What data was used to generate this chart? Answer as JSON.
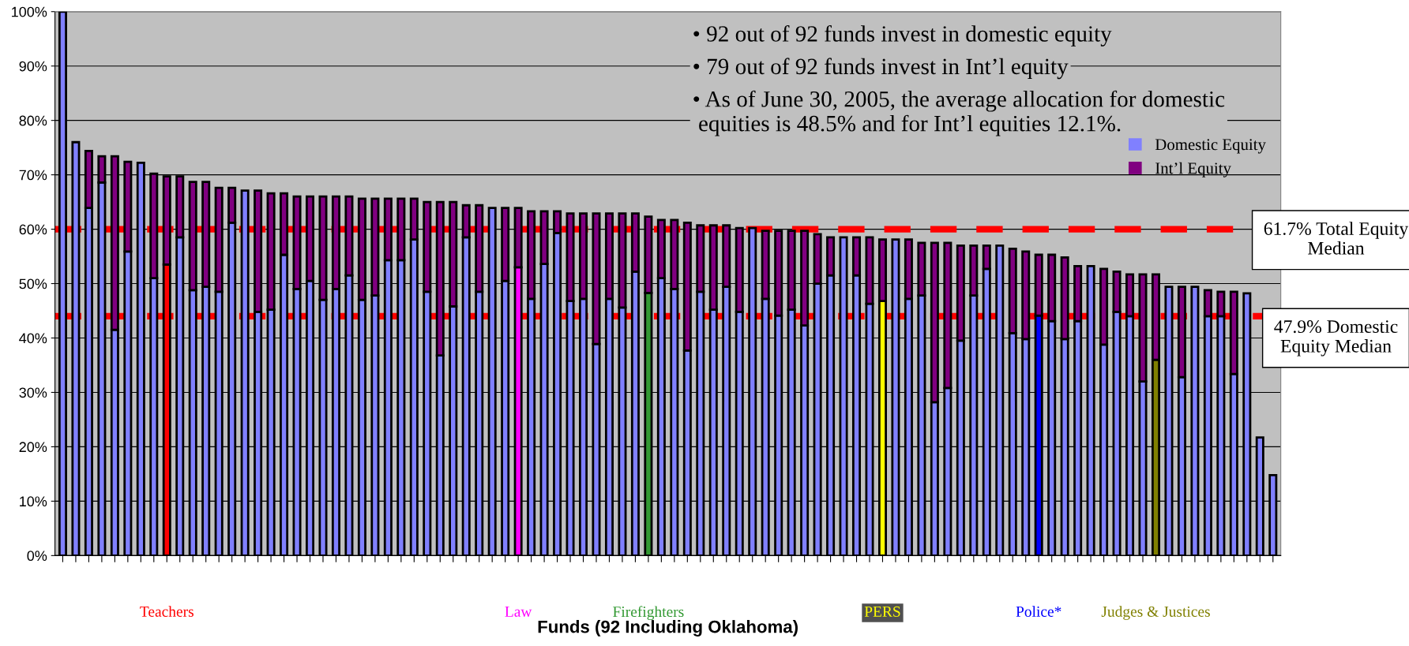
{
  "chart_data": {
    "type": "bar",
    "stacked": true,
    "xlabel": "Funds (92 Including Oklahoma)",
    "categories": [
      null,
      null,
      null,
      null,
      null,
      null,
      null,
      null,
      "Teachers",
      null,
      null,
      null,
      null,
      null,
      null,
      null,
      null,
      null,
      null,
      null,
      null,
      null,
      null,
      null,
      null,
      null,
      null,
      null,
      null,
      null,
      null,
      null,
      null,
      null,
      null,
      "Law",
      null,
      null,
      null,
      null,
      null,
      null,
      null,
      null,
      null,
      "Firefighters",
      null,
      null,
      null,
      null,
      null,
      null,
      null,
      null,
      null,
      null,
      null,
      null,
      null,
      null,
      null,
      null,
      null,
      "PERS",
      null,
      null,
      null,
      null,
      null,
      null,
      null,
      null,
      null,
      null,
      null,
      "Police*",
      null,
      null,
      null,
      null,
      null,
      null,
      null,
      null,
      "Judges & Justices",
      null,
      null,
      null,
      null,
      null,
      null,
      null,
      null,
      null
    ],
    "series": [
      {
        "name": "Domestic Equity",
        "color": "#8080ff",
        "colors": [
          "#8080ff",
          "#8080ff",
          "#8080ff",
          "#8080ff",
          "#8080ff",
          "#8080ff",
          "#8080ff",
          "#8080ff",
          "#ff0000",
          "#8080ff",
          "#8080ff",
          "#8080ff",
          "#8080ff",
          "#8080ff",
          "#8080ff",
          "#8080ff",
          "#8080ff",
          "#8080ff",
          "#8080ff",
          "#8080ff",
          "#8080ff",
          "#8080ff",
          "#8080ff",
          "#8080ff",
          "#8080ff",
          "#8080ff",
          "#8080ff",
          "#8080ff",
          "#8080ff",
          "#8080ff",
          "#8080ff",
          "#8080ff",
          "#8080ff",
          "#8080ff",
          "#8080ff",
          "#ff00ff",
          "#8080ff",
          "#8080ff",
          "#8080ff",
          "#8080ff",
          "#8080ff",
          "#8080ff",
          "#8080ff",
          "#8080ff",
          "#8080ff",
          "#339933",
          "#8080ff",
          "#8080ff",
          "#8080ff",
          "#8080ff",
          "#8080ff",
          "#8080ff",
          "#8080ff",
          "#8080ff",
          "#8080ff",
          "#8080ff",
          "#8080ff",
          "#8080ff",
          "#8080ff",
          "#8080ff",
          "#8080ff",
          "#8080ff",
          "#8080ff",
          "#ffff00",
          "#8080ff",
          "#8080ff",
          "#8080ff",
          "#8080ff",
          "#8080ff",
          "#8080ff",
          "#8080ff",
          "#8080ff",
          "#8080ff",
          "#8080ff",
          "#8080ff",
          "#0000ff",
          "#8080ff",
          "#8080ff",
          "#8080ff",
          "#8080ff",
          "#8080ff",
          "#8080ff",
          "#8080ff",
          "#8080ff",
          "#808000",
          "#8080ff",
          "#8080ff",
          "#8080ff",
          "#8080ff",
          "#8080ff",
          "#8080ff",
          "#8080ff",
          "#8080ff",
          "#8080ff"
        ],
        "values": [
          100,
          76,
          63.9,
          68.6,
          41.5,
          55.9,
          72.2,
          51,
          53.5,
          58.5,
          48.8,
          49.4,
          48.5,
          61.2,
          67.1,
          44.8,
          45.2,
          55.3,
          49,
          50.5,
          47,
          49,
          51.5,
          47,
          47.8,
          54.3,
          54.3,
          58.1,
          48.5,
          36.8,
          45.8,
          58.5,
          48.5,
          63.9,
          50.5,
          53,
          47.2,
          53.6,
          59.3,
          46.8,
          47.2,
          38.9,
          47.2,
          45.6,
          52.2,
          48.3,
          51,
          49,
          37.7,
          48.5,
          45.2,
          49.4,
          44.8,
          60.2,
          47.2,
          44.1,
          45.2,
          42.3,
          50,
          51.5,
          58.5,
          51.5,
          46.3,
          46.8,
          58.1,
          47.2,
          47.8,
          28.2,
          30.8,
          39.5,
          47.8,
          52.7,
          57,
          40.9,
          39.8,
          44.1,
          43.1,
          39.8,
          43.1,
          53.2,
          38.8,
          44.8,
          44,
          32,
          36,
          49.4,
          32.8,
          49.4,
          44,
          44,
          33.4,
          48.2,
          21.7,
          14.8
        ]
      },
      {
        "name": "Int’l Equity",
        "color": "#800080",
        "values": [
          null,
          null,
          10.5,
          4.8,
          31.9,
          16.5,
          null,
          19.2,
          16.2,
          11.2,
          19.9,
          19.3,
          19.1,
          6.4,
          null,
          22.3,
          21.4,
          11.3,
          17,
          15.5,
          19,
          17,
          14.5,
          18.6,
          17.8,
          11.3,
          11.3,
          7.5,
          16.5,
          28.2,
          19.2,
          5.9,
          15.9,
          null,
          13.4,
          10.9,
          16.1,
          9.7,
          4,
          16.1,
          15.7,
          24,
          15.7,
          17.3,
          10.7,
          14,
          10.7,
          12.7,
          23.5,
          12.2,
          15.5,
          11.3,
          15.4,
          null,
          12.5,
          15.6,
          14.5,
          17.4,
          9.1,
          7,
          null,
          7,
          12.2,
          11.3,
          null,
          10.9,
          9.7,
          29.3,
          26.7,
          17.5,
          9.2,
          4.3,
          null,
          15.5,
          16.1,
          11.2,
          12.2,
          15,
          10.1,
          null,
          13.9,
          7.4,
          7.7,
          19.7,
          15.7,
          null,
          16.6,
          null,
          4.8,
          4.5,
          15.1,
          null,
          null,
          null
        ]
      }
    ],
    "ylim": [
      0,
      100
    ],
    "yticks": [
      {
        "value": 0,
        "label": "0%"
      },
      {
        "value": 10,
        "label": "10%"
      },
      {
        "value": 20,
        "label": "20%"
      },
      {
        "value": 30,
        "label": "30%"
      },
      {
        "value": 40,
        "label": "40%"
      },
      {
        "value": 50,
        "label": "50%"
      },
      {
        "value": 60,
        "label": "60%"
      },
      {
        "value": 70,
        "label": "70%"
      },
      {
        "value": 80,
        "label": "80%"
      },
      {
        "value": 90,
        "label": "90%"
      },
      {
        "value": 100,
        "label": "100%"
      }
    ],
    "grid": "y",
    "legend": "top right",
    "ref_lines": [
      {
        "axis": "y",
        "value": 60,
        "label": "61.7% Total Equity\nMedian",
        "color": "#ff0000",
        "line_style": "dashed"
      },
      {
        "axis": "y",
        "value": 44,
        "label": "47.9% Domestic\nEquity Median",
        "color": "#ff0000",
        "line_style": "dashed"
      }
    ],
    "annotations": [
      "• 92 out of 92 funds invest in domestic equity",
      "• 79 out of 92 funds invest in Int’l equity",
      "• As of June 30, 2005, the average allocation for domestic\n equities is 48.5% and for Int’l equities 12.1%."
    ]
  }
}
